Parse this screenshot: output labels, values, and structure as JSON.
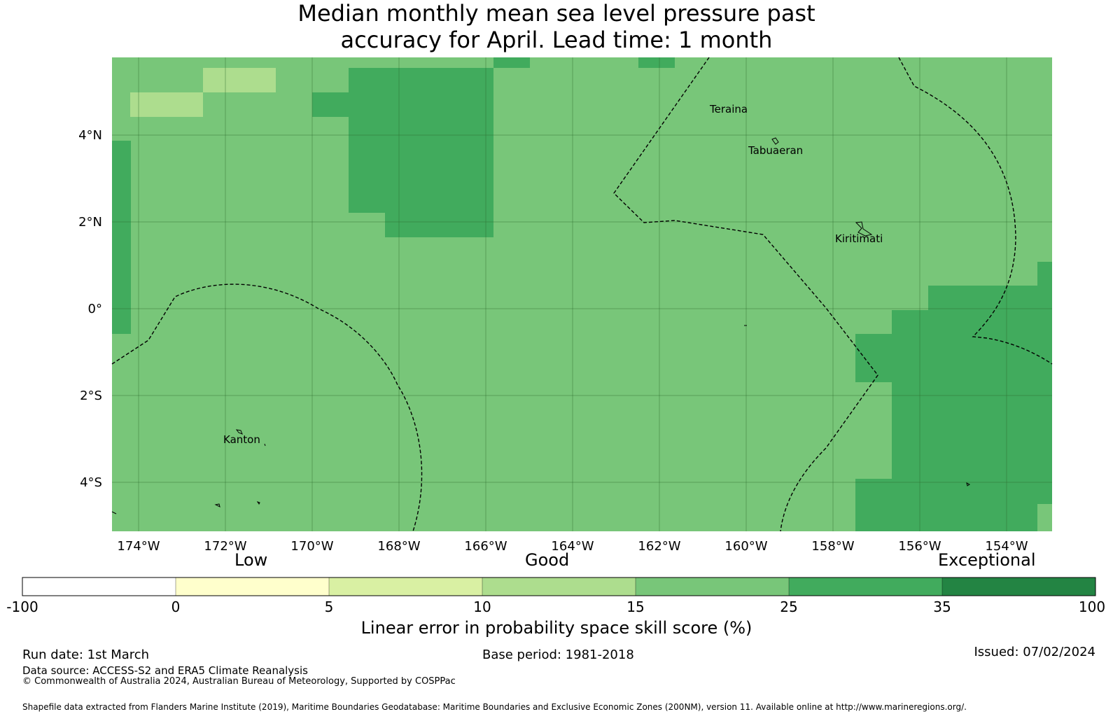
{
  "title_line1": "Median monthly mean sea level pressure past",
  "title_line2": "accuracy for April. Lead time: 1 month",
  "lon_labels": [
    "174°W",
    "172°W",
    "170°W",
    "168°W",
    "166°W",
    "164°W",
    "162°W",
    "160°W",
    "158°W",
    "156°W",
    "154°W"
  ],
  "lat_labels": [
    "4°N",
    "2°N",
    "0°",
    "2°S",
    "4°S"
  ],
  "places": [
    {
      "name": "Teraina"
    },
    {
      "name": "Tabuaeran"
    },
    {
      "name": "Kiritimati"
    },
    {
      "name": "Kanton"
    }
  ],
  "colorbar": {
    "categories": [
      "Low",
      "Good",
      "Exceptional"
    ],
    "bounds": [
      "-100",
      "0",
      "5",
      "10",
      "15",
      "25",
      "35",
      "100"
    ],
    "colors": [
      "#ffffff",
      "#ffffcc",
      "#d9f0a3",
      "#addd8e",
      "#78c679",
      "#41ab5d",
      "#238443"
    ],
    "title": "Linear error in probability space skill score (%)"
  },
  "colors": {
    "base_fill": "#78c679",
    "high_fill": "#41ab5d",
    "low_fill": "#addd8e"
  },
  "footer": {
    "run_date": "Run date: 1st March",
    "base_period": "Base period: 1981-2018",
    "issued": "Issued: 07/02/2024",
    "data_source": "Data source: ACCESS-S2 and ERA5 Climate Reanalysis",
    "copyright": "© Commonwealth of Australia 2024, Australian Bureau of Meteorology, Supported by COSPPac",
    "shapefile": "Shapefile data extracted from Flanders Marine Institute (2019), Maritime Boundaries Geodatabase: Maritime Boundaries and Exclusive Economic Zones (200NM), version 11. Available online at http://www.marineregions.org/."
  }
}
